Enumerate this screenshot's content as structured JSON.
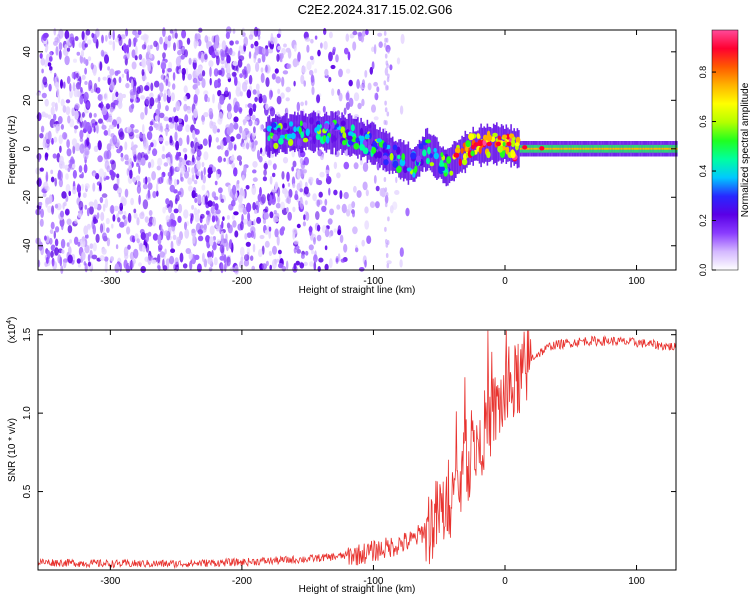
{
  "title": "C2E2.2024.317.15.02.G06",
  "chart_data": [
    {
      "type": "heatmap",
      "xlabel": "Height of straight line (km)",
      "ylabel": "Frequency (Hz)",
      "xlim": [
        -355,
        130
      ],
      "ylim": [
        -50,
        49
      ],
      "xticks": [
        -300,
        -200,
        -100,
        0,
        100
      ],
      "yticks": [
        -40,
        -20,
        0,
        20,
        40
      ],
      "colorbar": {
        "label": "Normalized spectral amplitude",
        "range": [
          0,
          0.97
        ],
        "ticks": [
          "0.0",
          "0.2",
          "0.4",
          "0.6",
          "0.8"
        ],
        "tick_values": [
          0,
          0.2,
          0.4,
          0.6,
          0.8
        ],
        "colors": [
          "#ffffff",
          "#d4b8ff",
          "#8a3cff",
          "#5a00e6",
          "#2828ff",
          "#00c8ff",
          "#00ffa0",
          "#20ff20",
          "#b4ff00",
          "#ffff00",
          "#ffb400",
          "#ff5a00",
          "#ff0030",
          "#ff4a9a"
        ]
      },
      "signal_track": [
        {
          "x": -180,
          "y": 5
        },
        {
          "x": -160,
          "y": 7
        },
        {
          "x": -140,
          "y": 7
        },
        {
          "x": -120,
          "y": 6
        },
        {
          "x": -100,
          "y": 2
        },
        {
          "x": -85,
          "y": -3
        },
        {
          "x": -70,
          "y": -7
        },
        {
          "x": -60,
          "y": 0
        },
        {
          "x": -45,
          "y": -8
        },
        {
          "x": -35,
          "y": -3
        },
        {
          "x": -25,
          "y": 1
        },
        {
          "x": -10,
          "y": 2
        },
        {
          "x": 0,
          "y": 2
        },
        {
          "x": 10,
          "y": 0
        },
        {
          "x": 130,
          "y": 0
        }
      ]
    },
    {
      "type": "line",
      "xlabel": "Height of straight line (km)",
      "ylabel": "SNR (10 * v/v)",
      "scale_label": "(x10",
      "scale_exp": "4",
      "scale_close": ")",
      "xlim": [
        -355,
        130
      ],
      "ylim": [
        0,
        15300
      ],
      "xticks": [
        -300,
        -200,
        -100,
        0,
        100
      ],
      "yticks": [
        "0.5",
        "1.0",
        "1.5"
      ],
      "ytick_values": [
        5000,
        10000,
        15000
      ],
      "color": "#e8322e",
      "trend": [
        {
          "x": -355,
          "y": 500
        },
        {
          "x": -300,
          "y": 400
        },
        {
          "x": -250,
          "y": 400
        },
        {
          "x": -200,
          "y": 500
        },
        {
          "x": -150,
          "y": 700
        },
        {
          "x": -110,
          "y": 1000
        },
        {
          "x": -90,
          "y": 1400
        },
        {
          "x": -70,
          "y": 1900
        },
        {
          "x": -55,
          "y": 3000
        },
        {
          "x": -45,
          "y": 4000
        },
        {
          "x": -35,
          "y": 5500
        },
        {
          "x": -25,
          "y": 7500
        },
        {
          "x": -15,
          "y": 9000
        },
        {
          "x": -5,
          "y": 10500
        },
        {
          "x": 5,
          "y": 11500
        },
        {
          "x": 20,
          "y": 13500
        },
        {
          "x": 35,
          "y": 14300
        },
        {
          "x": 60,
          "y": 14600
        },
        {
          "x": 80,
          "y": 14600
        },
        {
          "x": 100,
          "y": 14500
        },
        {
          "x": 130,
          "y": 14200
        }
      ]
    }
  ]
}
